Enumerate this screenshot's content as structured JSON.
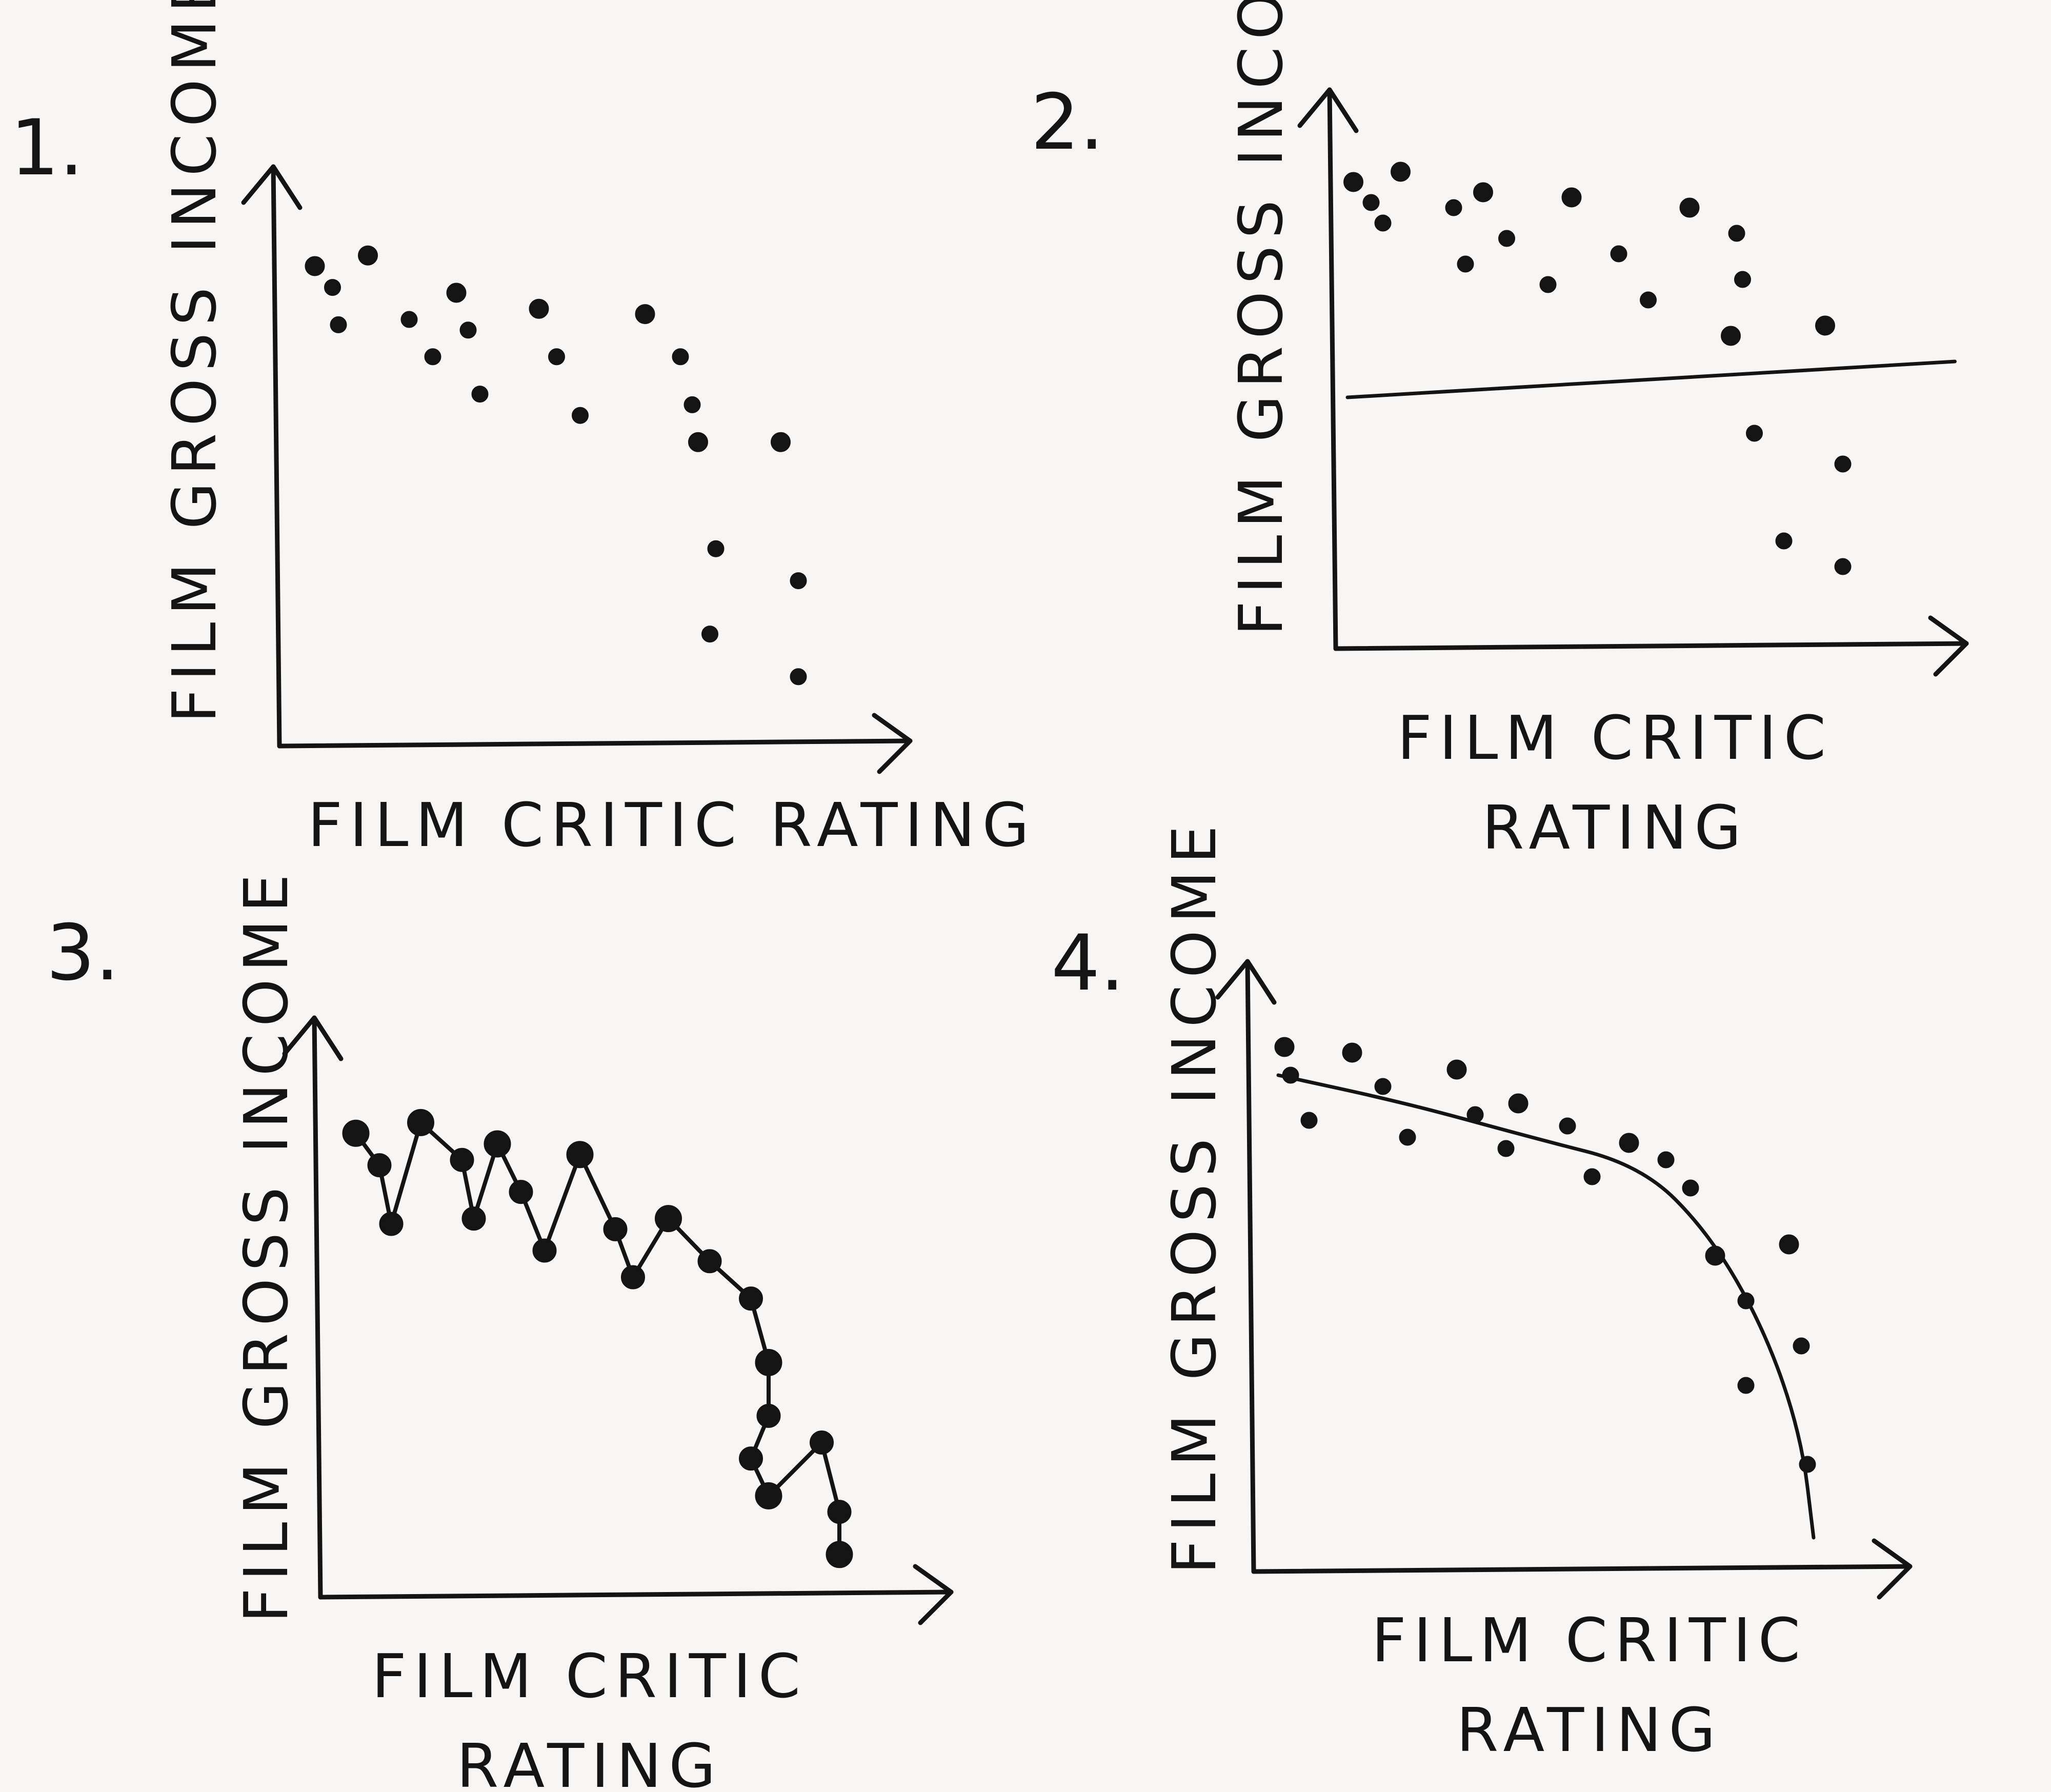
{
  "colors": {
    "ink": "#141414",
    "paper": "#f7f6f4"
  },
  "chart_data": [
    {
      "type": "scatter",
      "panel_label": "1.",
      "xlabel": "FILM CRITIC RATING",
      "ylabel": "FILM GROSS INCOME",
      "xlim": [
        0,
        10
      ],
      "ylim": [
        0,
        10
      ],
      "overlay": "none",
      "points": [
        [
          0.6,
          9.0
        ],
        [
          0.9,
          8.6
        ],
        [
          1.0,
          7.9
        ],
        [
          1.5,
          9.2
        ],
        [
          2.2,
          8.0
        ],
        [
          2.6,
          7.3
        ],
        [
          3.0,
          8.5
        ],
        [
          3.2,
          7.8
        ],
        [
          3.4,
          6.6
        ],
        [
          4.4,
          8.2
        ],
        [
          4.7,
          7.3
        ],
        [
          5.1,
          6.2
        ],
        [
          6.2,
          8.1
        ],
        [
          6.8,
          7.3
        ],
        [
          7.0,
          6.4
        ],
        [
          7.1,
          5.7
        ],
        [
          7.4,
          3.7
        ],
        [
          7.3,
          2.1
        ],
        [
          8.5,
          5.7
        ],
        [
          8.8,
          3.1
        ],
        [
          8.8,
          1.3
        ]
      ]
    },
    {
      "type": "scatter",
      "panel_label": "2.",
      "xlabel": "FILM CRITIC RATING",
      "ylabel": "FILM GROSS INCOME",
      "xlim": [
        0,
        10
      ],
      "ylim": [
        0,
        10
      ],
      "overlay": "linear-fit",
      "fit_line": [
        [
          0.2,
          4.9
        ],
        [
          10.5,
          5.6
        ]
      ],
      "points": [
        [
          0.3,
          9.1
        ],
        [
          0.6,
          8.7
        ],
        [
          0.8,
          8.3
        ],
        [
          1.1,
          9.3
        ],
        [
          2.0,
          8.6
        ],
        [
          2.2,
          7.5
        ],
        [
          2.5,
          8.9
        ],
        [
          2.9,
          8.0
        ],
        [
          3.6,
          7.1
        ],
        [
          4.0,
          8.8
        ],
        [
          4.8,
          7.7
        ],
        [
          5.3,
          6.8
        ],
        [
          6.0,
          8.6
        ],
        [
          6.8,
          8.1
        ],
        [
          6.9,
          7.2
        ],
        [
          6.7,
          6.1
        ],
        [
          7.1,
          4.2
        ],
        [
          7.6,
          2.1
        ],
        [
          8.3,
          6.3
        ],
        [
          8.6,
          3.6
        ],
        [
          8.6,
          1.6
        ]
      ]
    },
    {
      "type": "line",
      "panel_label": "3.",
      "xlabel": "FILM CRITIC RATING",
      "ylabel": "FILM GROSS INCOME",
      "xlim": [
        0,
        10
      ],
      "ylim": [
        0,
        10
      ],
      "overlay": "connected-points",
      "points": [
        [
          0.6,
          8.7
        ],
        [
          1.0,
          8.1
        ],
        [
          1.2,
          7.0
        ],
        [
          1.7,
          8.9
        ],
        [
          2.4,
          8.2
        ],
        [
          2.6,
          7.1
        ],
        [
          3.0,
          8.5
        ],
        [
          3.4,
          7.6
        ],
        [
          3.8,
          6.5
        ],
        [
          4.4,
          8.3
        ],
        [
          5.0,
          6.9
        ],
        [
          5.3,
          6.0
        ],
        [
          5.9,
          7.1
        ],
        [
          6.6,
          6.3
        ],
        [
          7.3,
          5.6
        ],
        [
          7.6,
          4.4
        ],
        [
          7.6,
          3.4
        ],
        [
          7.3,
          2.6
        ],
        [
          7.6,
          1.9
        ],
        [
          8.5,
          2.9
        ],
        [
          8.8,
          1.6
        ],
        [
          8.8,
          0.8
        ]
      ]
    },
    {
      "type": "scatter",
      "panel_label": "4.",
      "xlabel": "FILM CRITIC RATING",
      "ylabel": "FILM GROSS INCOME",
      "xlim": [
        0,
        10
      ],
      "ylim": [
        0,
        10
      ],
      "overlay": "curve-fit",
      "fit_curve": [
        [
          0.4,
          8.8
        ],
        [
          2.5,
          8.3
        ],
        [
          4.5,
          7.7
        ],
        [
          6.3,
          7.2
        ],
        [
          7.4,
          6.0
        ],
        [
          8.3,
          4.3
        ],
        [
          8.9,
          2.4
        ],
        [
          9.1,
          0.6
        ]
      ],
      "points": [
        [
          0.5,
          9.3
        ],
        [
          0.6,
          8.8
        ],
        [
          0.9,
          8.0
        ],
        [
          1.6,
          9.2
        ],
        [
          2.1,
          8.6
        ],
        [
          2.5,
          7.7
        ],
        [
          3.3,
          8.9
        ],
        [
          3.6,
          8.1
        ],
        [
          4.1,
          7.5
        ],
        [
          4.3,
          8.3
        ],
        [
          5.1,
          7.9
        ],
        [
          5.5,
          7.0
        ],
        [
          6.1,
          7.6
        ],
        [
          6.7,
          7.3
        ],
        [
          7.1,
          6.8
        ],
        [
          7.5,
          5.6
        ],
        [
          8.0,
          4.8
        ],
        [
          8.0,
          3.3
        ],
        [
          8.7,
          5.8
        ],
        [
          8.9,
          4.0
        ],
        [
          9.0,
          1.9
        ]
      ]
    }
  ]
}
